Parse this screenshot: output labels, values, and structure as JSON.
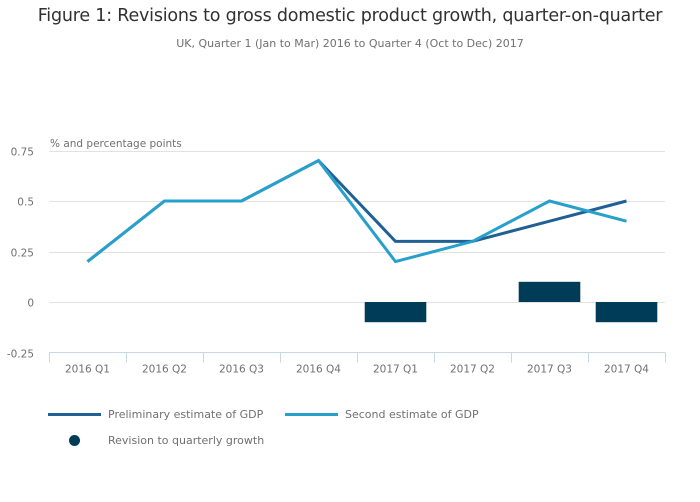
{
  "chart_data": {
    "type": "line",
    "title": "Figure 1: Revisions to gross domestic product growth, quarter-on-quarter",
    "subtitle": "UK, Quarter 1 (Jan to Mar) 2016 to Quarter 4 (Oct to Dec) 2017",
    "ylabel": "% and percentage points",
    "xlabel": "",
    "ylim": [
      -0.25,
      0.75
    ],
    "yticks": [
      0.75,
      0.5,
      0.25,
      0,
      -0.25
    ],
    "ytick_labels": [
      "0.75",
      "0.5",
      "0.25",
      "0",
      "-0.25"
    ],
    "grid": true,
    "legend_position": "bottom-left",
    "categories": [
      "2016 Q1",
      "2016 Q2",
      "2016 Q3",
      "2016 Q4",
      "2017 Q1",
      "2017 Q2",
      "2017 Q3",
      "2017 Q4"
    ],
    "series": [
      {
        "name": "Preliminary estimate of GDP",
        "type": "line",
        "color": "#206095",
        "values": [
          0.2,
          0.5,
          0.5,
          0.7,
          0.3,
          0.3,
          0.4,
          0.5
        ]
      },
      {
        "name": "Second estimate of GDP",
        "type": "line",
        "color": "#27a0cc",
        "values": [
          0.2,
          0.5,
          0.5,
          0.7,
          0.2,
          0.3,
          0.5,
          0.4
        ]
      },
      {
        "name": "Revision to quarterly growth",
        "type": "bar",
        "color": "#003c57",
        "values": [
          0,
          0,
          0,
          0,
          -0.1,
          0,
          0.1,
          -0.1
        ]
      }
    ]
  },
  "colors": {
    "gridline": "#e2e2e3",
    "axis": "#c8d6e5",
    "text": "#707071"
  }
}
